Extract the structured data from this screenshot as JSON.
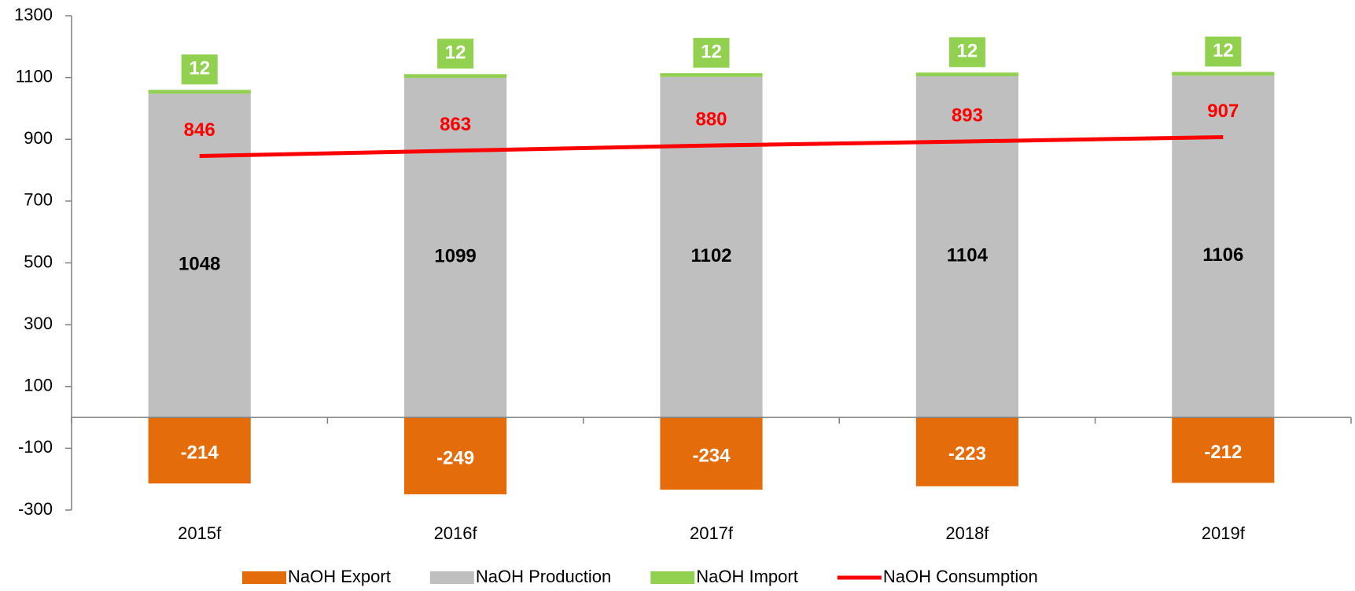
{
  "chart_data": {
    "type": "bar",
    "stacked": true,
    "categories": [
      "2015f",
      "2016f",
      "2017f",
      "2018f",
      "2019f"
    ],
    "series": [
      {
        "name": "NaOH Export",
        "color": "#e46c0a",
        "values": [
          -214,
          -249,
          -234,
          -223,
          -212
        ]
      },
      {
        "name": "NaOH Production",
        "color": "#bfbfbf",
        "values": [
          1048,
          1099,
          1102,
          1104,
          1106
        ]
      },
      {
        "name": "NaOH Import",
        "color": "#92d050",
        "values": [
          12,
          12,
          12,
          12,
          12
        ]
      },
      {
        "name": "NaOH Consumption",
        "color": "#ff0000",
        "type": "line",
        "values": [
          846,
          863,
          880,
          893,
          907
        ]
      }
    ],
    "ylim": [
      -300,
      1300
    ],
    "yticks": [
      -300,
      -100,
      100,
      300,
      500,
      700,
      900,
      1100,
      1300
    ],
    "legend": "bottom"
  }
}
